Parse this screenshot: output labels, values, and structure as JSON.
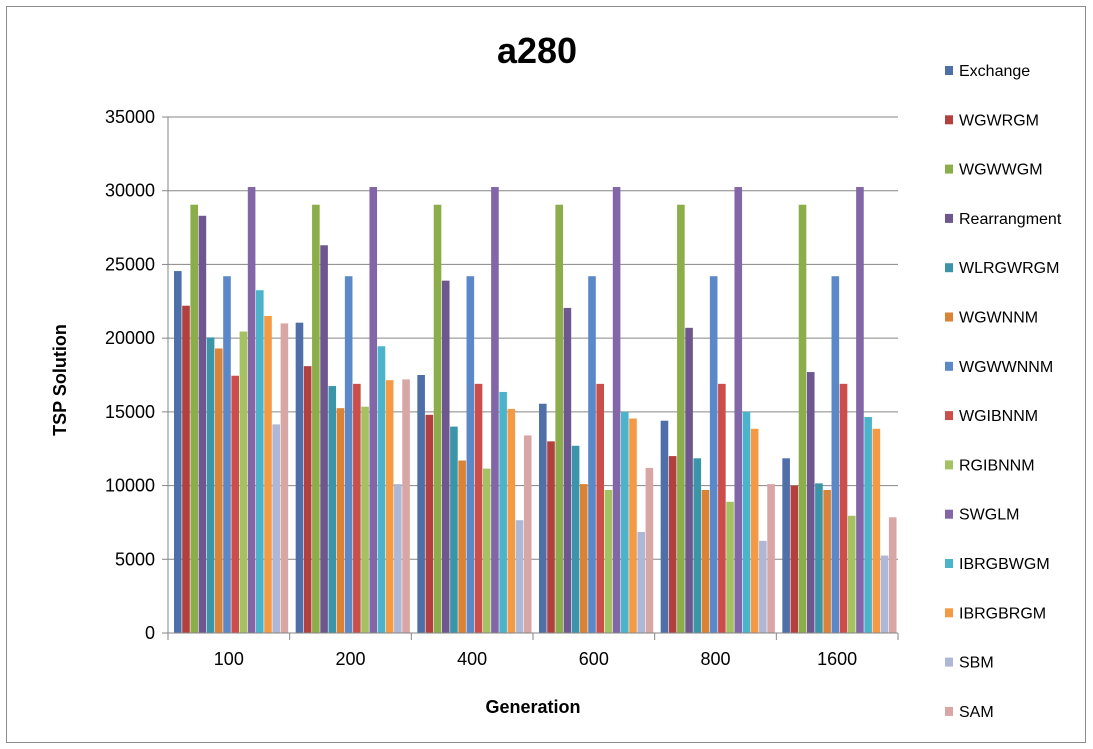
{
  "chart_data": {
    "type": "bar",
    "title": "a280",
    "xlabel": "Generation",
    "ylabel": "TSP Solution",
    "ylim": [
      0,
      35000
    ],
    "yticks": [
      "0",
      "5000",
      "10000",
      "15000",
      "20000",
      "25000",
      "30000",
      "35000"
    ],
    "grid": true,
    "legend_position": "right",
    "categories": [
      "100",
      "200",
      "400",
      "600",
      "800",
      "1600"
    ],
    "series": [
      {
        "name": "Exchange",
        "color": "#4F6FA8",
        "values": [
          24550,
          21050,
          17500,
          15550,
          14400,
          11850
        ]
      },
      {
        "name": "WGWRGM",
        "color": "#B2403E",
        "values": [
          22200,
          18100,
          14800,
          13000,
          12000,
          10000
        ]
      },
      {
        "name": "WGWWGM",
        "color": "#8BAE4A",
        "values": [
          29050,
          29050,
          29050,
          29050,
          29050,
          29050
        ]
      },
      {
        "name": "Rearrangment",
        "color": "#6E568F",
        "values": [
          28300,
          26300,
          23900,
          22050,
          20700,
          17700
        ]
      },
      {
        "name": "WLRGWRGM",
        "color": "#3B95A8",
        "values": [
          20050,
          16750,
          14000,
          12700,
          11850,
          10150
        ]
      },
      {
        "name": "WGWNNM",
        "color": "#DA8236",
        "values": [
          19300,
          15250,
          11700,
          10100,
          9700,
          9700
        ]
      },
      {
        "name": "WGWWNNM",
        "color": "#5A88C8",
        "values": [
          24200,
          24200,
          24200,
          24200,
          24200,
          24200
        ]
      },
      {
        "name": "WGIBNNM",
        "color": "#CC4E4B",
        "values": [
          17450,
          16900,
          16900,
          16900,
          16900,
          16900
        ]
      },
      {
        "name": "RGIBNNM",
        "color": "#A4C261",
        "values": [
          20450,
          15350,
          11150,
          9700,
          8900,
          7950
        ]
      },
      {
        "name": "SWGLM",
        "color": "#8266A8",
        "values": [
          30250,
          30250,
          30250,
          30250,
          30250,
          30250
        ]
      },
      {
        "name": "IBRGBWGM",
        "color": "#4BB4CB",
        "values": [
          23250,
          19450,
          16350,
          15000,
          15000,
          14650
        ]
      },
      {
        "name": "IBRGBRGM",
        "color": "#F49A45",
        "values": [
          21500,
          17150,
          15200,
          14550,
          13850,
          13850
        ]
      },
      {
        "name": "SBM",
        "color": "#AEB8D6",
        "values": [
          14150,
          10100,
          7650,
          6850,
          6250,
          5250
        ]
      },
      {
        "name": "SAM",
        "color": "#D8A6A5",
        "values": [
          21000,
          17200,
          13400,
          11200,
          10100,
          7850
        ]
      }
    ]
  }
}
